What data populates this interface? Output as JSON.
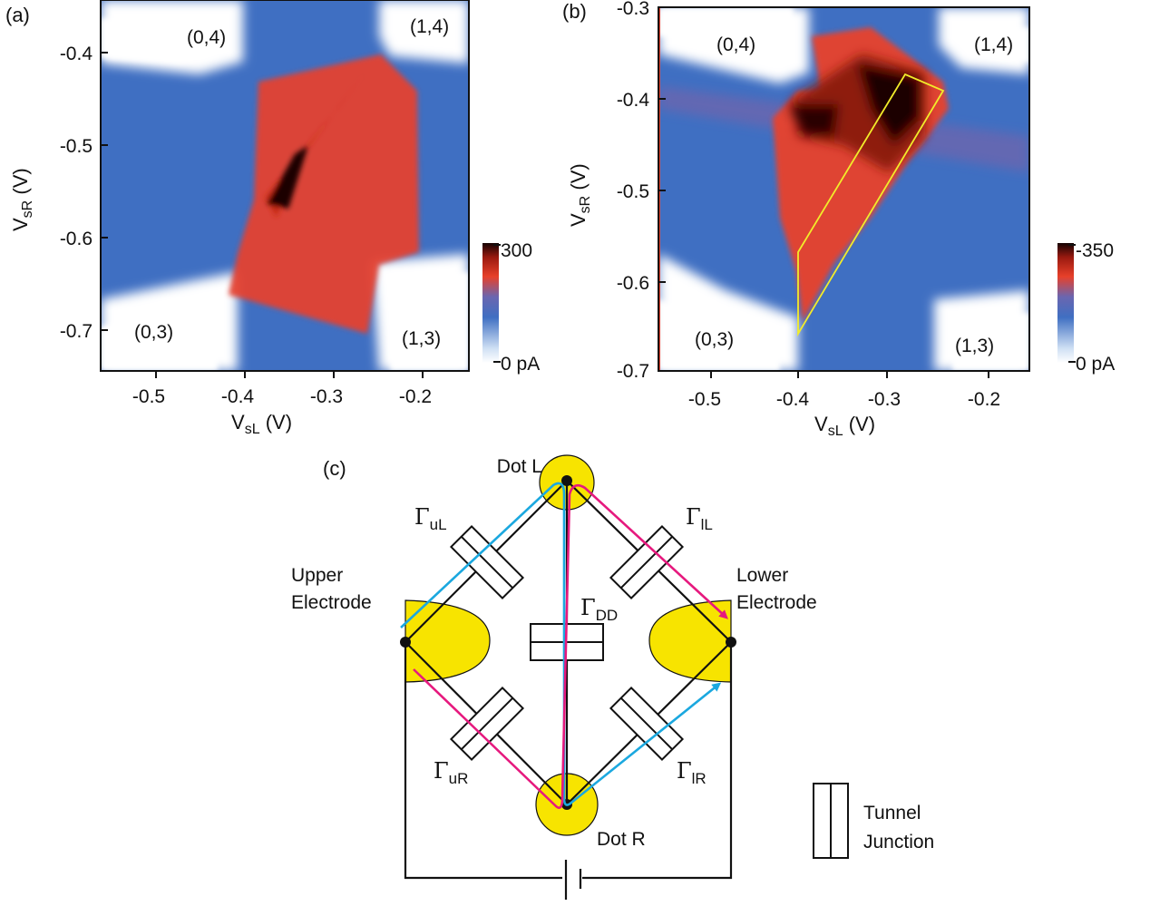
{
  "panel_a": {
    "label": "(a)",
    "ylabel_v": "V",
    "ylabel_sub": "sR",
    "ylabel_unit": " (V)",
    "xlabel_v": "V",
    "xlabel_sub": "sL",
    "xlabel_unit": " (V)",
    "yticks": [
      "-0.4",
      "-0.5",
      "-0.6",
      "-0.7"
    ],
    "xticks": [
      "-0.5",
      "-0.4",
      "-0.3",
      "-0.2"
    ],
    "regions": [
      "(0,4)",
      "(1,4)",
      "(0,3)",
      "(1,3)"
    ],
    "colorbar_max": "300",
    "colorbar_min": "0 pA"
  },
  "panel_b": {
    "label": "(b)",
    "ylabel_v": "V",
    "ylabel_sub": "sR",
    "ylabel_unit": " (V)",
    "xlabel_v": "V",
    "xlabel_sub": "sL",
    "xlabel_unit": " (V)",
    "yticks": [
      "-0.3",
      "-0.4",
      "-0.5",
      "-0.6",
      "-0.7"
    ],
    "xticks": [
      "-0.5",
      "-0.4",
      "-0.3",
      "-0.2"
    ],
    "regions": [
      "(0,4)",
      "(1,4)",
      "(0,3)",
      "(1,3)"
    ],
    "colorbar_max": "-350",
    "colorbar_min": "0 pA"
  },
  "panel_c": {
    "label": "(c)",
    "dot_l": "Dot L",
    "dot_r": "Dot R",
    "upper_electrode": [
      "Upper",
      "Electrode"
    ],
    "lower_electrode": [
      "Lower",
      "Electrode"
    ],
    "gamma": "Γ",
    "subs": {
      "uL": "uL",
      "lL": "lL",
      "DD": "DD",
      "uR": "uR",
      "lR": "lR"
    },
    "legend": [
      "Tunnel",
      "Junction"
    ]
  },
  "colors": {
    "map_blue": "#3f6fc2",
    "map_red": "#e8402a",
    "map_dark": "#1a0505",
    "gold": "#f7e400",
    "cyan": "#1ba8df",
    "magenta": "#e6197e",
    "yellow_outline": "#f2ec2a"
  }
}
